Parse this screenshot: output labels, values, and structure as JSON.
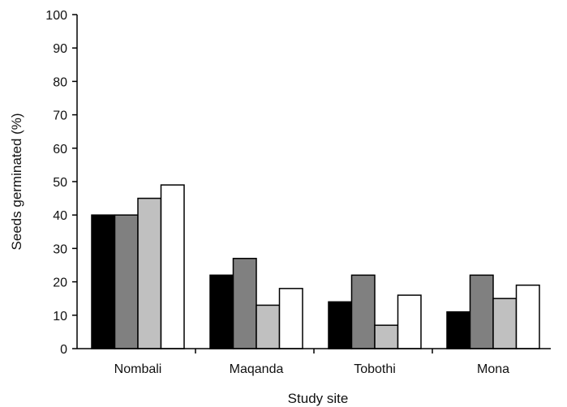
{
  "chart_data": {
    "type": "bar",
    "title": "",
    "xlabel": "Study site",
    "ylabel": "Seeds germinated (%)",
    "ylim": [
      0,
      100
    ],
    "yticks": [
      0,
      10,
      20,
      30,
      40,
      50,
      60,
      70,
      80,
      90,
      100
    ],
    "grid": false,
    "legend": "none",
    "categories": [
      "Nombali",
      "Maqanda",
      "Tobothi",
      "Mona"
    ],
    "series": [
      {
        "color": "#000000",
        "values": [
          40,
          22,
          14,
          11
        ]
      },
      {
        "color": "#808080",
        "values": [
          40,
          27,
          22,
          22
        ]
      },
      {
        "color": "#c0c0c0",
        "values": [
          45,
          13,
          7,
          15
        ]
      },
      {
        "color": "#ffffff",
        "values": [
          49,
          18,
          16,
          19
        ]
      }
    ]
  }
}
